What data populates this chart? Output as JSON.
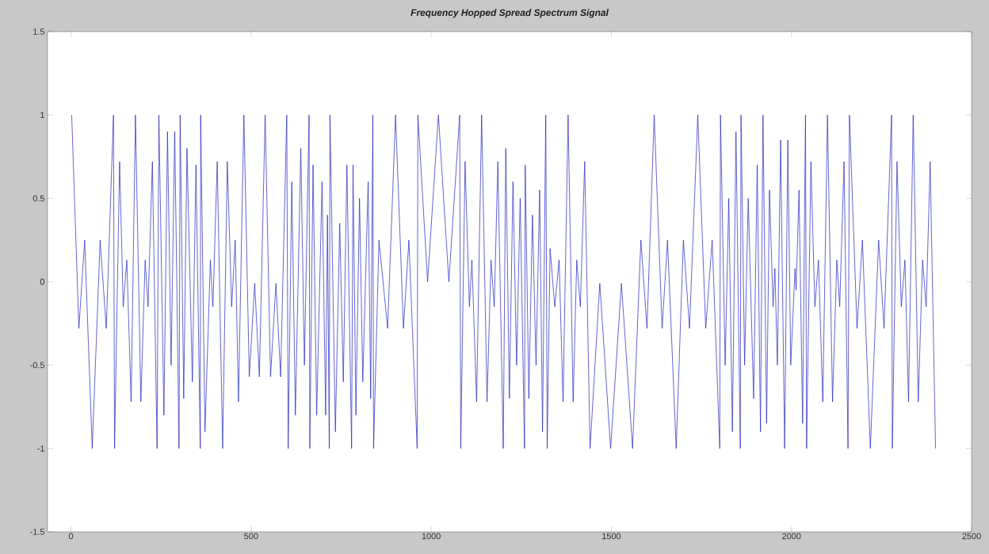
{
  "chart_data": {
    "type": "line",
    "title": "Frequency Hopped Spread Spectrum Signal",
    "color": "#1f1fbf",
    "xlim": [
      -65,
      2500
    ],
    "ylim": [
      -1.5,
      1.5
    ],
    "xticks": [
      0,
      500,
      1000,
      1500,
      2000,
      2500
    ],
    "yticks": [
      -1.5,
      -1,
      -0.5,
      0,
      0.5,
      1,
      1.5
    ],
    "x": [
      2,
      22,
      38,
      59,
      81,
      98,
      118,
      121,
      135,
      145,
      155,
      167,
      179,
      194,
      206,
      214,
      226,
      239,
      244,
      248,
      258,
      268,
      278,
      288,
      300,
      303,
      313,
      322,
      337,
      347,
      359,
      360,
      372,
      387,
      394,
      406,
      421,
      434,
      446,
      456,
      465,
      480,
      495,
      510,
      523,
      539,
      554,
      569,
      582,
      599,
      603,
      613,
      623,
      638,
      648,
      661,
      663,
      672,
      682,
      697,
      707,
      712,
      717,
      719,
      734,
      746,
      756,
      766,
      779,
      783,
      791,
      801,
      810,
      825,
      832,
      838,
      840,
      855,
      879,
      901,
      923,
      938,
      961,
      963,
      990,
      1020,
      1049,
      1079,
      1082,
      1094,
      1106,
      1113,
      1126,
      1140,
      1155,
      1166,
      1175,
      1185,
      1200,
      1207,
      1217,
      1227,
      1237,
      1247,
      1259,
      1261,
      1271,
      1281,
      1291,
      1301,
      1309,
      1318,
      1322,
      1330,
      1343,
      1355,
      1366,
      1380,
      1394,
      1404,
      1414,
      1426,
      1441,
      1468,
      1498,
      1528,
      1559,
      1582,
      1599,
      1619,
      1641,
      1656,
      1680,
      1700,
      1717,
      1740,
      1762,
      1780,
      1801,
      1803,
      1816,
      1826,
      1836,
      1846,
      1858,
      1860,
      1870,
      1880,
      1895,
      1905,
      1914,
      1921,
      1931,
      1939,
      1949,
      1954,
      1961,
      1970,
      1981,
      1990,
      1998,
      2010,
      2013,
      2021,
      2031,
      2039,
      2042,
      2054,
      2065,
      2075,
      2087,
      2100,
      2114,
      2126,
      2134,
      2146,
      2157,
      2161,
      2182,
      2197,
      2219,
      2242,
      2257,
      2278,
      2280,
      2293,
      2305,
      2315,
      2325,
      2338,
      2352,
      2364,
      2374,
      2385,
      2400
    ],
    "values": [
      1,
      -0.28,
      0.25,
      -1,
      0.25,
      -0.28,
      1,
      -1,
      0.72,
      -0.15,
      0.13,
      -0.72,
      1,
      -0.72,
      0.13,
      -0.15,
      0.72,
      -1,
      1,
      0.5,
      -0.8,
      0.9,
      -0.5,
      0.9,
      -1,
      1,
      -0.7,
      0.8,
      -0.6,
      0.7,
      -1,
      1,
      -0.9,
      0.13,
      -0.15,
      0.72,
      -1,
      0.72,
      -0.15,
      0.25,
      -0.72,
      1,
      -0.57,
      -0.01,
      -0.57,
      1,
      -0.57,
      -0.01,
      -0.57,
      1,
      -1,
      0.6,
      -0.8,
      0.8,
      -0.5,
      1,
      -1,
      0.7,
      -0.8,
      0.6,
      -0.8,
      0.4,
      -1,
      1,
      -0.9,
      0.35,
      -0.6,
      0.7,
      -1,
      0.7,
      -0.8,
      0.5,
      -0.6,
      0.6,
      -0.7,
      1,
      -1,
      0.25,
      -0.28,
      1,
      -0.28,
      0.25,
      -1,
      1,
      0,
      1,
      0,
      1,
      -1,
      0.72,
      -0.15,
      0.13,
      -0.72,
      1,
      -0.72,
      0.13,
      -0.15,
      0.72,
      -1,
      0.8,
      -0.7,
      0.6,
      -0.5,
      0.5,
      -1,
      0.7,
      -0.7,
      0.4,
      -0.5,
      0.55,
      -0.9,
      1,
      -1,
      0.2,
      -0.15,
      0.13,
      -0.72,
      1,
      -0.72,
      0.13,
      -0.15,
      0.72,
      -1,
      -0.01,
      -1,
      -0.01,
      -1,
      0.25,
      -0.28,
      1,
      -0.28,
      0.25,
      -1,
      0.25,
      -0.28,
      1,
      -0.28,
      0.25,
      -1,
      1,
      -0.5,
      0.5,
      -0.9,
      0.9,
      -1,
      1,
      -0.5,
      0.5,
      -0.7,
      0.7,
      -0.9,
      1,
      -0.85,
      0.55,
      -0.15,
      0.08,
      -0.5,
      0.85,
      -1,
      0.85,
      -0.5,
      0.08,
      -0.05,
      0.55,
      -0.85,
      1,
      -1,
      0.72,
      -0.15,
      0.13,
      -0.72,
      1,
      -0.72,
      0.13,
      -0.15,
      0.72,
      -1,
      1,
      -0.28,
      0.25,
      -1,
      0.25,
      -0.28,
      1,
      -1,
      0.72,
      -0.15,
      0.13,
      -0.72,
      1,
      -0.72,
      0.13,
      -0.15,
      0.72,
      -1
    ]
  }
}
